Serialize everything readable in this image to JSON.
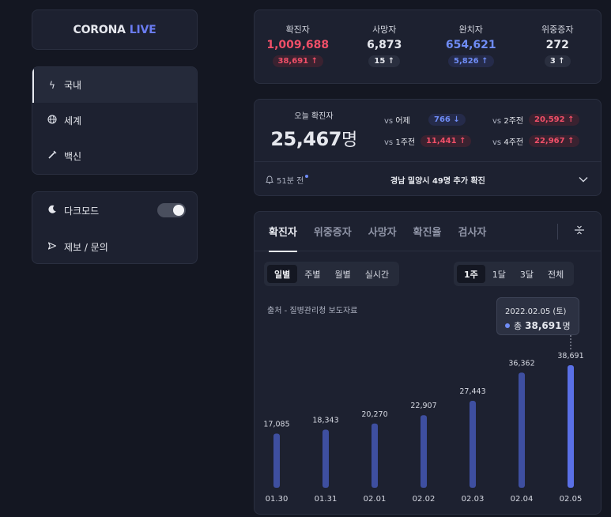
{
  "logo": {
    "main": "CORONA",
    "accent": "LIVE"
  },
  "nav": {
    "items": [
      {
        "icon": "lightning-icon",
        "glyph": "ϟ",
        "label": "국내"
      },
      {
        "icon": "globe-icon",
        "glyph": "⊕",
        "label": "세계"
      },
      {
        "icon": "syringe-icon",
        "glyph": "⟋",
        "label": "백신"
      }
    ]
  },
  "settings": {
    "dark_mode_label": "다크모드",
    "dark_mode_on": true,
    "report_label": "제보 / 문의"
  },
  "stats": [
    {
      "label": "확진자",
      "value": "1,009,688",
      "change": "38,691 ↑",
      "color": "red"
    },
    {
      "label": "사망자",
      "value": "6,873",
      "change": "15 ↑",
      "color": "white"
    },
    {
      "label": "완치자",
      "value": "654,621",
      "change": "5,826 ↑",
      "color": "blue"
    },
    {
      "label": "위중증자",
      "value": "272",
      "change": "3 ↑",
      "color": "white"
    }
  ],
  "today": {
    "label": "오늘 확진자",
    "number": "25,467",
    "unit": "명",
    "comparisons": [
      {
        "prefix": "vs",
        "period": "어제",
        "value": "766 ↓",
        "color": "blue"
      },
      {
        "prefix": "vs",
        "period": "2주전",
        "value": "20,592 ↑",
        "color": "red"
      },
      {
        "prefix": "vs",
        "period": "1주전",
        "value": "11,441 ↑",
        "color": "red"
      },
      {
        "prefix": "vs",
        "period": "4주전",
        "value": "22,967 ↑",
        "color": "red"
      }
    ],
    "news_time": "51분 전",
    "news_text": "경남 밀양시 49명 추가 확진"
  },
  "chart_tabs": [
    "확진자",
    "위중증자",
    "사망자",
    "확진율",
    "검사자"
  ],
  "chart_tab_active": 0,
  "period_options": [
    "일별",
    "주별",
    "월별",
    "실시간"
  ],
  "period_selected": 0,
  "range_options": [
    "1주",
    "1달",
    "3달",
    "전체"
  ],
  "range_selected": 0,
  "source": "출처 - 질병관리청 보도자료",
  "tooltip": {
    "date": "2022.02.05 (토)",
    "prefix": "총",
    "value": "38,691",
    "unit": "명"
  },
  "colors": {
    "accent": "#6f8cf5",
    "bar": "#3e4fa0",
    "bar_highlight": "#5a70e6",
    "red": "#f04f68"
  },
  "chart_data": {
    "type": "bar",
    "categories": [
      "01.30",
      "01.31",
      "02.01",
      "02.02",
      "02.03",
      "02.04",
      "02.05"
    ],
    "values": [
      17085,
      18343,
      20270,
      22907,
      27443,
      36362,
      38691
    ],
    "value_labels": [
      "17,085",
      "18,343",
      "20,270",
      "22,907",
      "27,443",
      "36,362",
      "38,691"
    ],
    "highlight_index": 6
  }
}
